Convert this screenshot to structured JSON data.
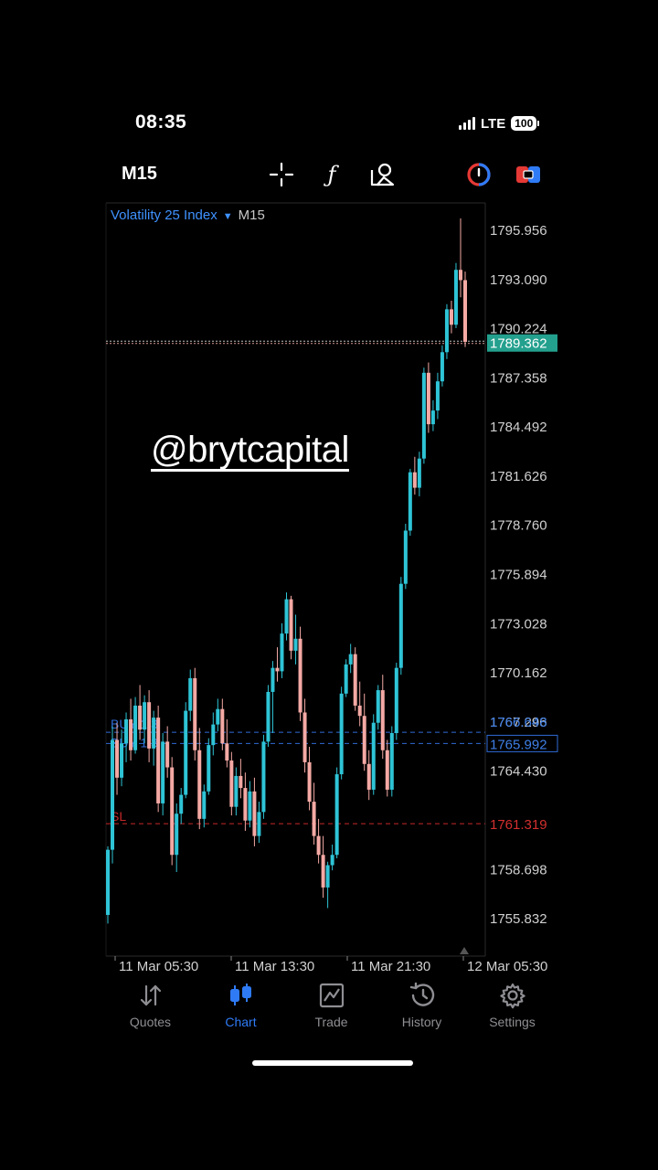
{
  "status_bar": {
    "time": "08:35",
    "network": "LTE",
    "battery": "100"
  },
  "toolbar": {
    "timeframe": "M15",
    "icons": [
      "crosshair-icon",
      "indicators-icon",
      "objects-icon",
      "one-click-trading-icon",
      "trade-panel-icon"
    ],
    "indicators_glyph": "ƒ"
  },
  "chart": {
    "symbol": "Volatility 25 Index",
    "symbol_arrow": "▼",
    "timeframe": "M15",
    "watermark": "@brytcapital",
    "current_price": "1789.362",
    "price_levels": [
      "1795.956",
      "1793.090",
      "1790.224",
      "1787.358",
      "1784.492",
      "1781.626",
      "1778.760",
      "1775.894",
      "1773.028",
      "1770.162",
      "1767.296",
      "1764.430",
      "1758.698",
      "1755.832"
    ],
    "time_labels": [
      "11 Mar 05:30",
      "11 Mar 13:30",
      "11 Mar 21:30",
      "12 Mar 05:30"
    ],
    "orders": [
      {
        "label": "BUY 1.3",
        "price": "1766.648"
      },
      {
        "label": "BUY 1.3",
        "price": "1765.992"
      }
    ],
    "stop_loss": {
      "label": "SL",
      "price": "1761.319"
    },
    "colors": {
      "bull": "#26a69a",
      "bear": "#f4a9a4",
      "bull_bright": "#2ec4d6",
      "current_tag": "#23a08e",
      "order_line": "#2f6bd6",
      "sl_line": "#c62828"
    }
  },
  "chart_data": {
    "type": "candlestick",
    "ylim": [
      1753.6,
      1797.5
    ],
    "price_labels_y": [
      1795.956,
      1793.09,
      1790.224,
      1787.358,
      1784.492,
      1781.626,
      1778.76,
      1775.894,
      1773.028,
      1770.162,
      1767.296,
      1764.43,
      1758.698,
      1755.832
    ],
    "xlabels": [
      "11 Mar 05:30",
      "11 Mar 13:30",
      "11 Mar 21:30",
      "12 Mar 05:30"
    ],
    "ohlc": [
      [
        1756.0,
        1760.0,
        1755.5,
        1759.8
      ],
      [
        1759.8,
        1767.0,
        1759.0,
        1766.2
      ],
      [
        1766.2,
        1767.2,
        1763.0,
        1764.0
      ],
      [
        1764.0,
        1766.8,
        1763.5,
        1766.0
      ],
      [
        1766.0,
        1767.8,
        1764.9,
        1767.4
      ],
      [
        1767.4,
        1768.6,
        1765.0,
        1765.6
      ],
      [
        1765.6,
        1768.7,
        1765.4,
        1768.2
      ],
      [
        1768.2,
        1769.4,
        1766.2,
        1766.8
      ],
      [
        1766.8,
        1768.8,
        1766.0,
        1768.4
      ],
      [
        1768.4,
        1769.1,
        1764.9,
        1765.7
      ],
      [
        1765.7,
        1767.9,
        1764.7,
        1767.5
      ],
      [
        1767.5,
        1768.2,
        1762.0,
        1762.5
      ],
      [
        1762.5,
        1766.6,
        1761.8,
        1766.1
      ],
      [
        1766.1,
        1767.0,
        1764.0,
        1764.6
      ],
      [
        1764.6,
        1765.2,
        1758.9,
        1759.5
      ],
      [
        1759.5,
        1762.5,
        1758.5,
        1761.9
      ],
      [
        1761.9,
        1763.4,
        1761.3,
        1763.0
      ],
      [
        1763.0,
        1768.4,
        1762.8,
        1767.9
      ],
      [
        1767.9,
        1770.3,
        1767.3,
        1769.8
      ],
      [
        1769.8,
        1770.4,
        1765.0,
        1765.6
      ],
      [
        1765.6,
        1766.9,
        1761.0,
        1761.6
      ],
      [
        1761.6,
        1763.6,
        1761.1,
        1763.2
      ],
      [
        1763.2,
        1766.3,
        1763.0,
        1765.9
      ],
      [
        1765.9,
        1767.8,
        1765.3,
        1767.1
      ],
      [
        1767.1,
        1768.6,
        1766.7,
        1768.0
      ],
      [
        1768.0,
        1768.6,
        1765.6,
        1766.0
      ],
      [
        1766.0,
        1767.4,
        1764.6,
        1765.0
      ],
      [
        1765.0,
        1765.5,
        1761.8,
        1762.3
      ],
      [
        1762.3,
        1764.6,
        1761.8,
        1764.1
      ],
      [
        1764.1,
        1765.1,
        1762.8,
        1763.4
      ],
      [
        1763.4,
        1764.3,
        1760.9,
        1761.5
      ],
      [
        1761.5,
        1763.8,
        1761.1,
        1763.2
      ],
      [
        1763.2,
        1764.0,
        1760.0,
        1760.6
      ],
      [
        1760.6,
        1762.6,
        1760.2,
        1762.0
      ],
      [
        1762.0,
        1766.5,
        1761.6,
        1766.1
      ],
      [
        1766.1,
        1769.4,
        1765.8,
        1769.0
      ],
      [
        1769.0,
        1770.8,
        1766.6,
        1770.4
      ],
      [
        1770.4,
        1771.6,
        1769.6,
        1770.2
      ],
      [
        1770.2,
        1773.0,
        1769.8,
        1772.4
      ],
      [
        1772.4,
        1774.8,
        1772.0,
        1774.4
      ],
      [
        1774.4,
        1774.6,
        1770.9,
        1771.4
      ],
      [
        1771.4,
        1773.5,
        1770.6,
        1772.1
      ],
      [
        1772.1,
        1772.8,
        1767.3,
        1767.8
      ],
      [
        1767.8,
        1768.6,
        1764.3,
        1764.9
      ],
      [
        1764.9,
        1765.8,
        1762.1,
        1762.6
      ],
      [
        1762.6,
        1763.7,
        1760.1,
        1760.6
      ],
      [
        1760.6,
        1761.6,
        1759.0,
        1759.5
      ],
      [
        1759.5,
        1760.6,
        1757.0,
        1757.6
      ],
      [
        1757.6,
        1759.1,
        1756.4,
        1758.9
      ],
      [
        1758.9,
        1760.1,
        1758.6,
        1759.5
      ],
      [
        1759.5,
        1764.6,
        1759.3,
        1764.2
      ],
      [
        1764.2,
        1769.3,
        1763.9,
        1768.9
      ],
      [
        1768.9,
        1770.9,
        1768.7,
        1770.6
      ],
      [
        1770.6,
        1771.8,
        1770.1,
        1771.2
      ],
      [
        1771.2,
        1771.6,
        1767.9,
        1768.2
      ],
      [
        1768.2,
        1769.6,
        1767.0,
        1767.6
      ],
      [
        1767.6,
        1768.9,
        1764.4,
        1764.8
      ],
      [
        1764.8,
        1765.6,
        1762.7,
        1763.3
      ],
      [
        1763.3,
        1767.7,
        1763.0,
        1767.2
      ],
      [
        1767.2,
        1769.4,
        1766.8,
        1769.1
      ],
      [
        1769.1,
        1770.0,
        1765.1,
        1765.6
      ],
      [
        1765.6,
        1766.2,
        1762.9,
        1763.3
      ],
      [
        1763.3,
        1767.0,
        1762.9,
        1766.6
      ],
      [
        1766.6,
        1770.7,
        1766.2,
        1770.4
      ],
      [
        1770.4,
        1775.7,
        1770.0,
        1775.3
      ],
      [
        1775.3,
        1778.8,
        1775.0,
        1778.4
      ],
      [
        1778.4,
        1782.0,
        1778.1,
        1781.8
      ],
      [
        1781.8,
        1782.7,
        1780.5,
        1780.9
      ],
      [
        1780.9,
        1783.0,
        1780.4,
        1782.6
      ],
      [
        1782.6,
        1787.9,
        1782.3,
        1787.6
      ],
      [
        1787.6,
        1788.2,
        1784.1,
        1784.6
      ],
      [
        1784.6,
        1786.0,
        1784.2,
        1785.4
      ],
      [
        1785.4,
        1787.6,
        1784.9,
        1787.1
      ],
      [
        1787.1,
        1789.2,
        1786.8,
        1788.8
      ],
      [
        1788.8,
        1791.6,
        1788.4,
        1791.3
      ],
      [
        1791.3,
        1791.8,
        1789.9,
        1790.4
      ],
      [
        1790.4,
        1794.0,
        1790.2,
        1793.6
      ],
      [
        1793.6,
        1796.6,
        1792.0,
        1793.0
      ],
      [
        1793.0,
        1793.5,
        1789.1,
        1789.4
      ]
    ]
  },
  "nav": {
    "items": [
      {
        "label": "Quotes",
        "icon": "quotes-icon"
      },
      {
        "label": "Chart",
        "icon": "chart-icon"
      },
      {
        "label": "Trade",
        "icon": "trade-icon"
      },
      {
        "label": "History",
        "icon": "history-icon"
      },
      {
        "label": "Settings",
        "icon": "settings-icon"
      }
    ],
    "active": "Chart"
  }
}
